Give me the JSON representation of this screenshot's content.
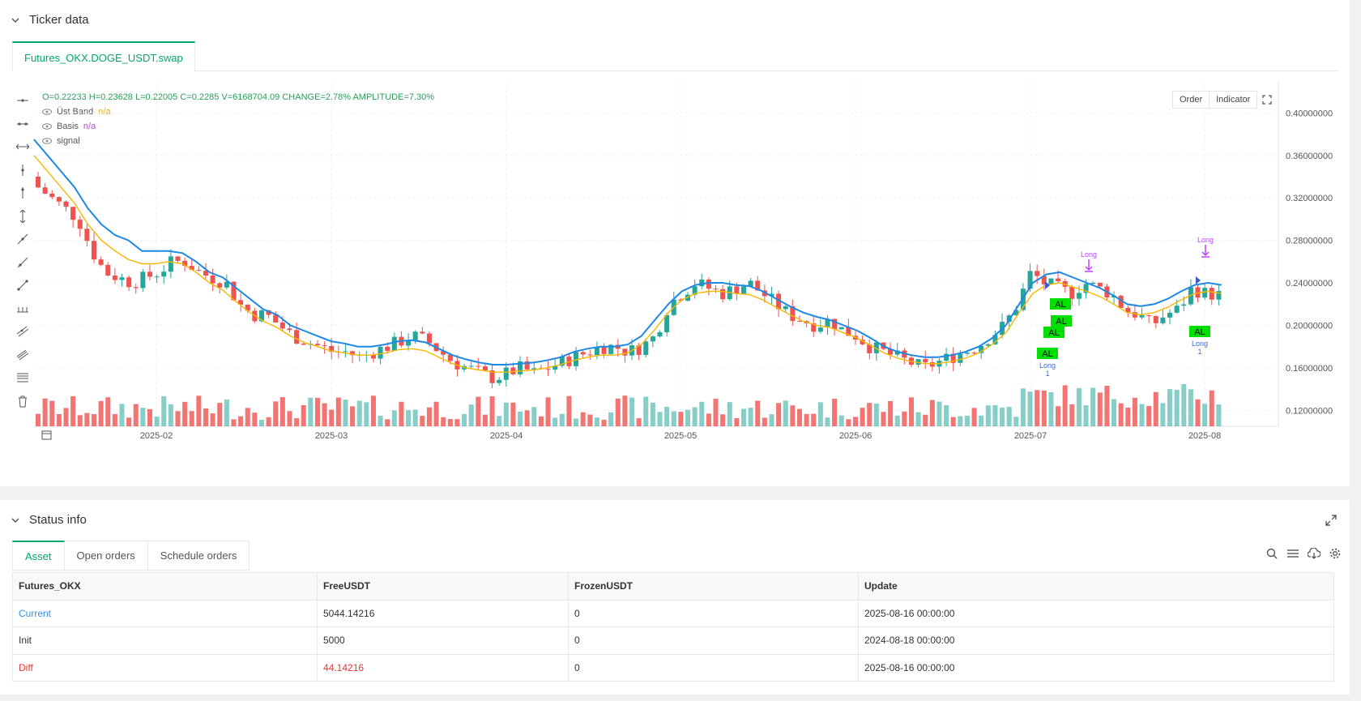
{
  "ticker": {
    "title": "Ticker data",
    "tab_label": "Futures_OKX.DOGE_USDT.swap"
  },
  "chart": {
    "ohlc_text": "O=0.22233 H=0.23628 L=0.22005 C=0.2285 V=6168704.09 CHANGE=2.78% AMPLITUDE=7.30%",
    "legend": [
      {
        "name": "Üst Band",
        "value": "n/a"
      },
      {
        "name": "Basis",
        "value": "n/a"
      },
      {
        "name": "signal",
        "value": ""
      }
    ],
    "buttons": {
      "order": "Order",
      "indicator": "Indicator"
    },
    "colors": {
      "up": "#26a69a",
      "down": "#ef5350",
      "upper_band": "#1e88e5",
      "basis": "#f5b800",
      "signal_bg": "#00e000",
      "long_label": "#c040ff"
    }
  },
  "chart_data": {
    "type": "candlestick",
    "symbol": "Futures_OKX.DOGE_USDT.swap",
    "x_tick_labels": [
      "2025-02",
      "2025-03",
      "2025-04",
      "2025-05",
      "2025-06",
      "2025-07",
      "2025-08"
    ],
    "y_tick_labels": [
      "0.40000000",
      "0.36000000",
      "0.32000000",
      "0.28000000",
      "0.24000000",
      "0.20000000",
      "0.16000000",
      "0.12000000"
    ],
    "y_range": [
      0.105,
      0.43
    ],
    "series": [
      {
        "name": "close",
        "values": [
          0.33,
          0.32,
          0.31,
          0.3,
          0.27,
          0.25,
          0.245,
          0.24,
          0.245,
          0.25,
          0.26,
          0.26,
          0.25,
          0.245,
          0.24,
          0.22,
          0.21,
          0.21,
          0.2,
          0.19,
          0.185,
          0.18,
          0.175,
          0.175,
          0.17,
          0.175,
          0.18,
          0.185,
          0.19,
          0.185,
          0.175,
          0.165,
          0.16,
          0.155,
          0.15,
          0.155,
          0.16,
          0.155,
          0.16,
          0.165,
          0.17,
          0.175,
          0.18,
          0.18,
          0.175,
          0.18,
          0.19,
          0.22,
          0.23,
          0.24,
          0.235,
          0.23,
          0.235,
          0.24,
          0.23,
          0.22,
          0.21,
          0.205,
          0.2,
          0.205,
          0.195,
          0.19,
          0.18,
          0.175,
          0.17,
          0.165,
          0.16,
          0.165,
          0.17,
          0.175,
          0.18,
          0.19,
          0.2,
          0.22,
          0.25,
          0.24,
          0.235,
          0.23,
          0.24,
          0.235,
          0.23,
          0.215,
          0.21,
          0.2,
          0.21,
          0.215,
          0.235,
          0.23,
          0.2285
        ]
      },
      {
        "name": "Üst Band",
        "values": [
          0.375,
          0.36,
          0.345,
          0.33,
          0.31,
          0.295,
          0.285,
          0.28,
          0.27,
          0.27,
          0.27,
          0.268,
          0.26,
          0.25,
          0.245,
          0.235,
          0.225,
          0.215,
          0.21,
          0.2,
          0.195,
          0.19,
          0.185,
          0.183,
          0.18,
          0.18,
          0.182,
          0.185,
          0.186,
          0.184,
          0.178,
          0.172,
          0.168,
          0.165,
          0.163,
          0.163,
          0.164,
          0.165,
          0.167,
          0.17,
          0.175,
          0.178,
          0.18,
          0.18,
          0.182,
          0.19,
          0.205,
          0.22,
          0.232,
          0.238,
          0.24,
          0.24,
          0.238,
          0.237,
          0.232,
          0.225,
          0.218,
          0.212,
          0.208,
          0.205,
          0.2,
          0.195,
          0.188,
          0.18,
          0.175,
          0.172,
          0.17,
          0.17,
          0.172,
          0.175,
          0.18,
          0.188,
          0.2,
          0.22,
          0.24,
          0.248,
          0.25,
          0.245,
          0.24,
          0.235,
          0.228,
          0.22,
          0.218,
          0.22,
          0.225,
          0.232,
          0.238,
          0.24,
          0.238
        ]
      },
      {
        "name": "Basis",
        "values": [
          0.36,
          0.345,
          0.33,
          0.315,
          0.295,
          0.28,
          0.27,
          0.262,
          0.258,
          0.258,
          0.26,
          0.258,
          0.25,
          0.24,
          0.233,
          0.222,
          0.212,
          0.204,
          0.198,
          0.19,
          0.184,
          0.18,
          0.176,
          0.174,
          0.172,
          0.172,
          0.174,
          0.177,
          0.178,
          0.176,
          0.17,
          0.164,
          0.16,
          0.158,
          0.156,
          0.156,
          0.157,
          0.158,
          0.16,
          0.163,
          0.167,
          0.17,
          0.172,
          0.172,
          0.174,
          0.182,
          0.196,
          0.212,
          0.224,
          0.23,
          0.232,
          0.232,
          0.23,
          0.229,
          0.224,
          0.217,
          0.21,
          0.204,
          0.2,
          0.198,
          0.193,
          0.188,
          0.181,
          0.174,
          0.169,
          0.166,
          0.164,
          0.164,
          0.166,
          0.169,
          0.174,
          0.182,
          0.193,
          0.212,
          0.23,
          0.238,
          0.24,
          0.236,
          0.232,
          0.227,
          0.22,
          0.212,
          0.21,
          0.212,
          0.217,
          0.224,
          0.23,
          0.232,
          0.23
        ]
      }
    ],
    "signals": [
      {
        "text": "AL",
        "note": "Long 1"
      },
      {
        "text": "AL",
        "note": ""
      },
      {
        "text": "AL",
        "note": ""
      },
      {
        "text": "AL",
        "note": ""
      },
      {
        "text": "AL",
        "note": "Long 1"
      }
    ],
    "long_marks": [
      "Long",
      "Long"
    ]
  },
  "status": {
    "title": "Status info",
    "tabs": [
      "Asset",
      "Open orders",
      "Schedule orders"
    ],
    "columns": [
      "Futures_OKX",
      "FreeUSDT",
      "FrozenUSDT",
      "Update"
    ],
    "rows": [
      [
        "Current",
        "5044.14216",
        "0",
        "2025-08-16 00:00:00"
      ],
      [
        "Init",
        "5000",
        "0",
        "2024-08-18 00:00:00"
      ],
      [
        "Diff",
        "44.14216",
        "0",
        "2025-08-16 00:00:00"
      ]
    ]
  }
}
